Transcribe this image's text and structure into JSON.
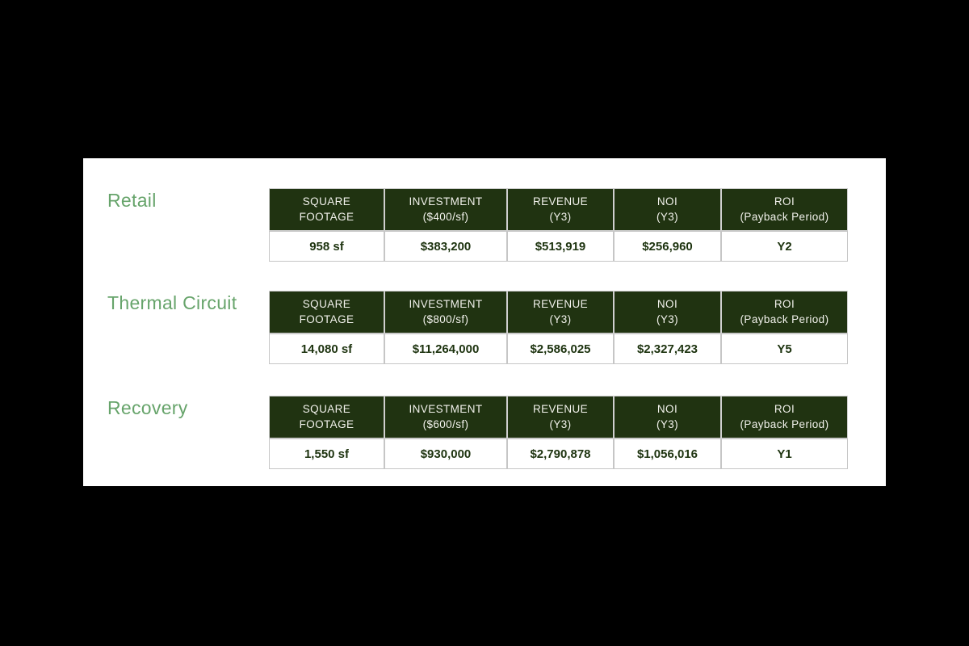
{
  "colors": {
    "page_background": "#000000",
    "panel_background": "#ffffff",
    "section_label_green": "#67a46b",
    "header_cell_green": "#203311",
    "header_text": "#f2f2ec",
    "data_text_green": "#1d330f",
    "border_gray": "#c6c6c6"
  },
  "sections": [
    {
      "label": "Retail",
      "columns": [
        "SQUARE\nFOOTAGE",
        "INVESTMENT\n($400/sf)",
        "REVENUE\n(Y3)",
        "NOI\n(Y3)",
        "ROI\n(Payback Period)"
      ],
      "values": [
        "958 sf",
        "$383,200",
        "$513,919",
        "$256,960",
        "Y2"
      ]
    },
    {
      "label": "Thermal Circuit",
      "columns": [
        "SQUARE\nFOOTAGE",
        "INVESTMENT\n($800/sf)",
        "REVENUE\n(Y3)",
        "NOI\n(Y3)",
        "ROI\n(Payback Period)"
      ],
      "values": [
        "14,080 sf",
        "$11,264,000",
        "$2,586,025",
        "$2,327,423",
        "Y5"
      ]
    },
    {
      "label": "Recovery",
      "columns": [
        "SQUARE\nFOOTAGE",
        "INVESTMENT\n($600/sf)",
        "REVENUE\n(Y3)",
        "NOI\n(Y3)",
        "ROI\n(Payback Period)"
      ],
      "values": [
        "1,550 sf",
        "$930,000",
        "$2,790,878",
        "$1,056,016",
        "Y1"
      ]
    }
  ]
}
